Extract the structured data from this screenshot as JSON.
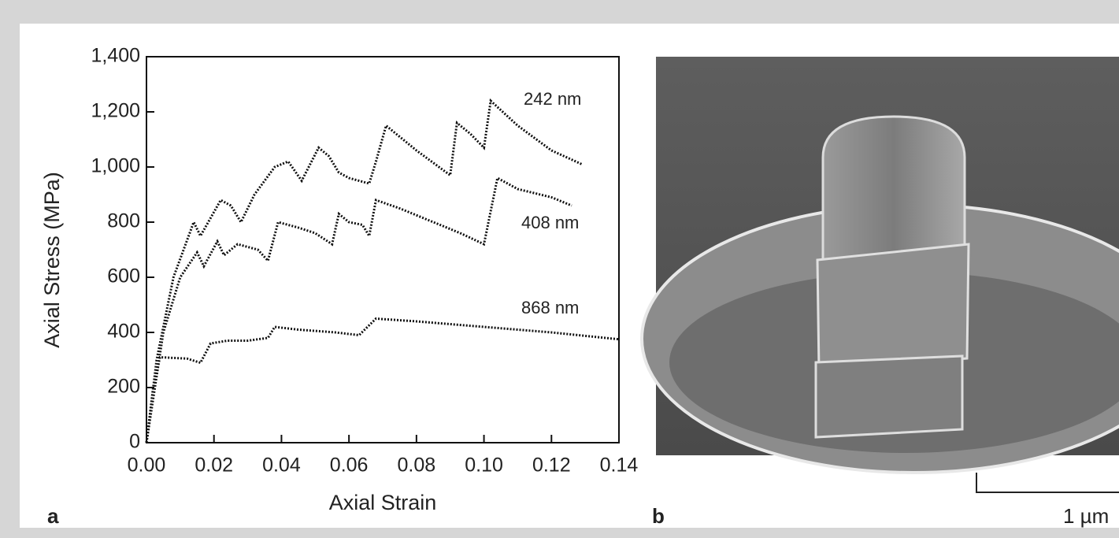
{
  "chart_data": {
    "type": "line",
    "x_label": "Axial Strain",
    "y_label": "Axial Stress (MPa)",
    "xlim": [
      0,
      0.14
    ],
    "ylim": [
      0,
      1400
    ],
    "xticks": [
      {
        "value": 0,
        "label": "0.00"
      },
      0.02,
      0.04,
      0.06,
      0.08,
      {
        "value": 0.1,
        "label": "0.10"
      },
      0.12,
      0.14
    ],
    "yticks": [
      0,
      200,
      400,
      600,
      800,
      {
        "value": 1000,
        "label": "1,000"
      },
      {
        "value": 1200,
        "label": "1,200"
      },
      {
        "value": 1400,
        "label": "1,400"
      }
    ],
    "series": [
      {
        "name": "242 nm",
        "color": "#111111",
        "x": [
          0,
          0.003,
          0.008,
          0.014,
          0.016,
          0.022,
          0.025,
          0.028,
          0.032,
          0.035,
          0.038,
          0.042,
          0.046,
          0.051,
          0.054,
          0.057,
          0.06,
          0.066,
          0.068,
          0.071,
          0.08,
          0.09,
          0.092,
          0.096,
          0.1,
          0.102,
          0.11,
          0.12,
          0.129
        ],
        "values": [
          0,
          300,
          600,
          800,
          750,
          880,
          860,
          800,
          900,
          950,
          1000,
          1020,
          950,
          1070,
          1040,
          980,
          960,
          940,
          1020,
          1150,
          1060,
          970,
          1160,
          1120,
          1070,
          1240,
          1150,
          1060,
          1010
        ]
      },
      {
        "name": "408 nm",
        "color": "#111111",
        "x": [
          0,
          0.005,
          0.01,
          0.015,
          0.017,
          0.021,
          0.023,
          0.027,
          0.033,
          0.036,
          0.039,
          0.045,
          0.05,
          0.055,
          0.057,
          0.06,
          0.064,
          0.066,
          0.068,
          0.075,
          0.085,
          0.093,
          0.1,
          0.104,
          0.11,
          0.12,
          0.126
        ],
        "values": [
          0,
          400,
          600,
          690,
          640,
          730,
          680,
          720,
          700,
          660,
          800,
          780,
          760,
          720,
          830,
          800,
          790,
          750,
          880,
          850,
          800,
          760,
          720,
          960,
          920,
          890,
          860
        ]
      },
      {
        "name": "868 nm",
        "color": "#111111",
        "x": [
          0,
          0.002,
          0.004,
          0.012,
          0.016,
          0.019,
          0.024,
          0.03,
          0.036,
          0.038,
          0.045,
          0.056,
          0.063,
          0.068,
          0.08,
          0.1,
          0.12,
          0.14
        ],
        "values": [
          0,
          200,
          310,
          305,
          290,
          360,
          370,
          370,
          380,
          420,
          410,
          400,
          390,
          450,
          440,
          420,
          400,
          375
        ]
      }
    ]
  },
  "panel_labels": [
    "a",
    "b"
  ],
  "scale_bar": "1 µm"
}
